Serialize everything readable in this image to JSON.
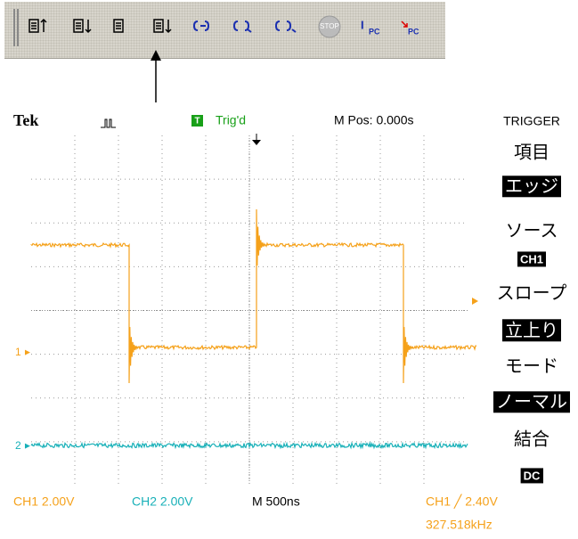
{
  "toolbar": {
    "stop": "STOP",
    "ipc": {
      "main": "I",
      "sub": "PC"
    },
    "spc": {
      "sub": "PC"
    }
  },
  "scope": {
    "header": {
      "brand": "Tek",
      "trigger_badge": "T",
      "status": "Trig'd",
      "position": "M Pos: 0.000s"
    },
    "markers": {
      "ch1": "1",
      "ch2": "2"
    },
    "menu": {
      "title": "TRIGGER",
      "items": [
        {
          "label": "項目",
          "value": "エッジ"
        },
        {
          "label": "ソース",
          "value": "CH1"
        },
        {
          "label": "スロープ",
          "value": "立上り"
        },
        {
          "label": "モード",
          "value": "ノーマル"
        },
        {
          "label": "結合",
          "value": "DC"
        }
      ]
    },
    "footer": {
      "ch1": "CH1  2.00V",
      "ch2": "CH2  2.00V",
      "timebase": "M 500ns",
      "trigger": "CH1 ╱ 2.40V",
      "frequency": "327.518kHz"
    }
  }
}
